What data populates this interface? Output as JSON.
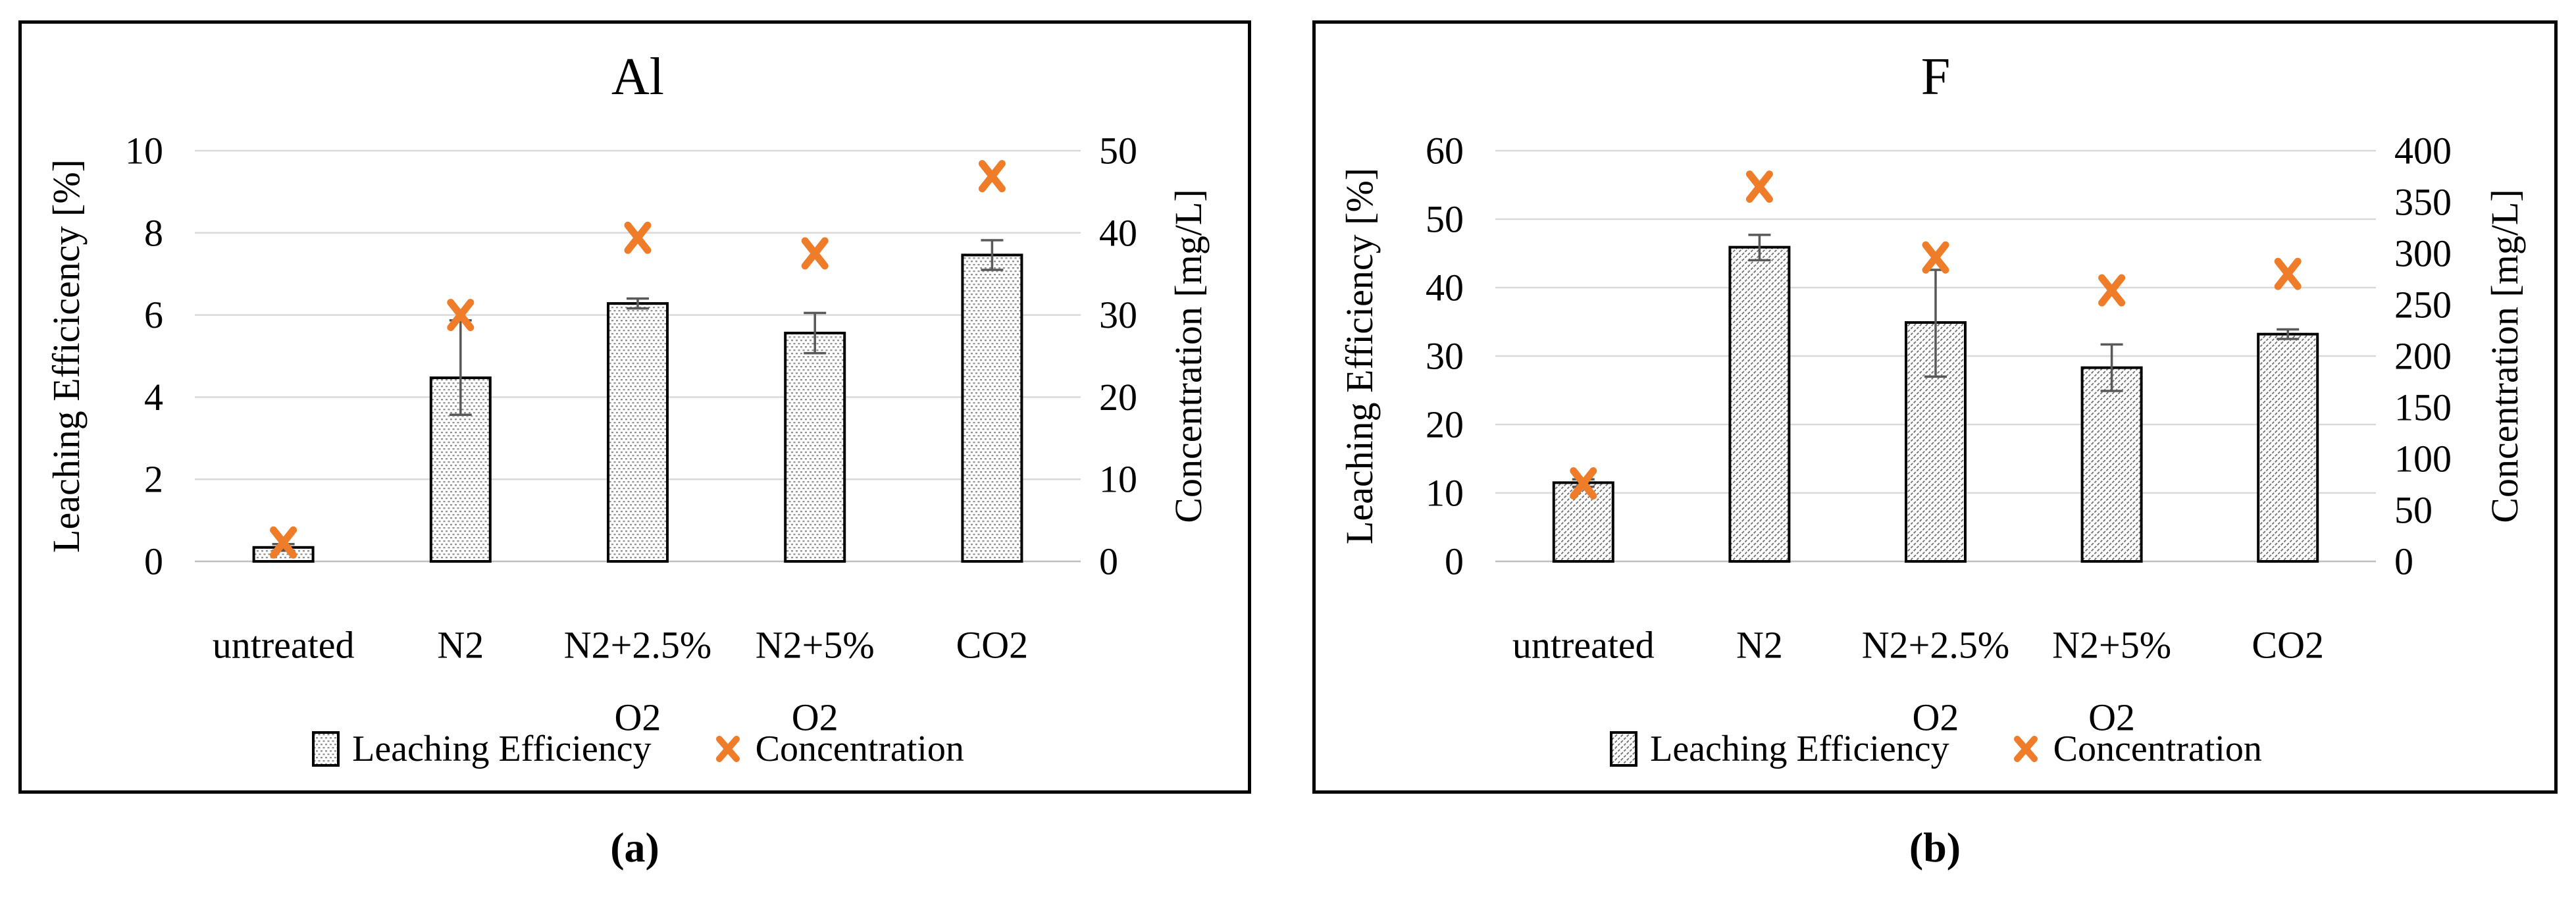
{
  "figure": {
    "captions": [
      "(a)",
      "(b)"
    ]
  },
  "chart_data": [
    {
      "type": "bar",
      "panel": "a",
      "title": "Al",
      "categories": [
        "untreated",
        "N2",
        "N2+2.5% O2",
        "N2+5% O2",
        "CO2"
      ],
      "categories_lines": [
        [
          "untreated"
        ],
        [
          "N2"
        ],
        [
          "N2+2.5%",
          "O2"
        ],
        [
          "N2+5%",
          "O2"
        ],
        [
          "CO2"
        ]
      ],
      "ylabel_left": "Leaching Efficicency [%]",
      "ylabel_right": "Concentration [mg/L]",
      "yleft": {
        "min": 0,
        "max": 10,
        "step": 2,
        "ticks": [
          0,
          2,
          4,
          6,
          8,
          10
        ]
      },
      "yright": {
        "min": 0,
        "max": 50,
        "step": 10,
        "ticks": [
          0,
          10,
          20,
          30,
          40,
          50
        ]
      },
      "grid": true,
      "legend_position": "bottom",
      "series": [
        {
          "name": "Leaching Efficiency",
          "type": "bar",
          "axis": "left",
          "values": [
            0.34,
            4.47,
            6.28,
            5.56,
            7.46
          ],
          "err_up": [
            0.08,
            1.4,
            0.12,
            0.49,
            0.36
          ],
          "err_down": [
            0.08,
            0.9,
            0.12,
            0.49,
            0.36
          ]
        },
        {
          "name": "Concentration",
          "type": "scatter",
          "axis": "right",
          "values": [
            2.3,
            30.0,
            39.4,
            37.5,
            46.9
          ]
        }
      ]
    },
    {
      "type": "bar",
      "panel": "b",
      "title": "F",
      "categories": [
        "untreated",
        "N2",
        "N2+2.5% O2",
        "N2+5% O2",
        "CO2"
      ],
      "categories_lines": [
        [
          "untreated"
        ],
        [
          "N2"
        ],
        [
          "N2+2.5%",
          "O2"
        ],
        [
          "N2+5%",
          "O2"
        ],
        [
          "CO2"
        ]
      ],
      "ylabel_left": "Leaching Efficiency [%]",
      "ylabel_right": "Concentration [mg/L]",
      "yleft": {
        "min": 0,
        "max": 60,
        "step": 10,
        "ticks": [
          0,
          10,
          20,
          30,
          40,
          50,
          60
        ]
      },
      "yright": {
        "min": 0,
        "max": 400,
        "step": 50,
        "ticks": [
          0,
          50,
          100,
          150,
          200,
          250,
          300,
          350,
          400
        ]
      },
      "grid": true,
      "legend_position": "bottom",
      "series": [
        {
          "name": "Leaching Efficiency",
          "type": "bar",
          "axis": "left",
          "values": [
            11.5,
            45.9,
            34.9,
            28.3,
            33.2
          ],
          "err_up": [
            0.5,
            1.8,
            7.7,
            3.4,
            0.7
          ],
          "err_down": [
            0.6,
            1.9,
            7.9,
            3.4,
            0.7
          ]
        },
        {
          "name": "Concentration",
          "type": "scatter",
          "axis": "right",
          "values": [
            76,
            365,
            296,
            264,
            280
          ]
        }
      ]
    }
  ],
  "colors": {
    "marker_orange": "#ee7c28",
    "gridline": "#d9d9d9",
    "baseline": "#bfbfbf",
    "error_bar": "#595959",
    "bar_border": "#000000"
  }
}
